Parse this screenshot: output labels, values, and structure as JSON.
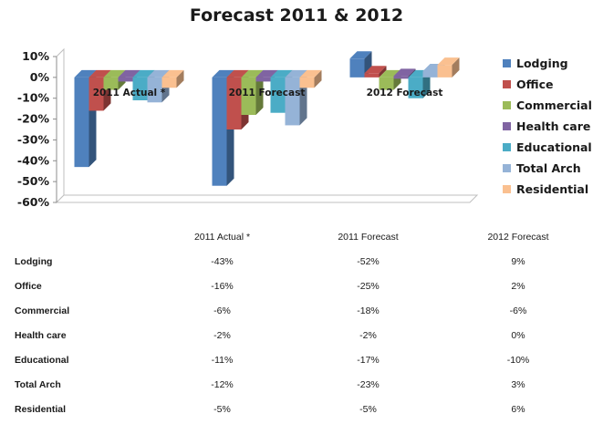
{
  "chart_data": {
    "type": "bar",
    "title": "Forecast 2011 & 2012",
    "categories": [
      "2011 Actual *",
      "2011 Forecast",
      "2012 Forecast"
    ],
    "series": [
      {
        "name": "Lodging",
        "values": [
          -43,
          -52,
          9
        ],
        "color": "#4F81BD"
      },
      {
        "name": "Office",
        "values": [
          -16,
          -25,
          2
        ],
        "color": "#C0504D"
      },
      {
        "name": "Commercial",
        "values": [
          -6,
          -18,
          -6
        ],
        "color": "#9BBB59"
      },
      {
        "name": "Health care",
        "values": [
          -2,
          -2,
          0
        ],
        "color": "#8064A2"
      },
      {
        "name": "Educational",
        "values": [
          -11,
          -17,
          -10
        ],
        "color": "#4BACC6"
      },
      {
        "name": "Total Arch",
        "values": [
          -12,
          -23,
          3
        ],
        "color": "#95B3D7"
      },
      {
        "name": "Residential",
        "values": [
          -5,
          -5,
          6
        ],
        "color": "#FAC090"
      }
    ],
    "ylim": [
      -60,
      10
    ],
    "yticks": [
      "10%",
      "0%",
      "-10%",
      "-20%",
      "-30%",
      "-40%",
      "-50%",
      "-60%"
    ],
    "grid": false,
    "legend": "right",
    "xlabel": "",
    "ylabel": ""
  },
  "table": {
    "headers": [
      "",
      "2011 Actual *",
      "2011 Forecast",
      "2012 Forecast"
    ],
    "rows": [
      {
        "label": "Lodging",
        "cells": [
          "-43%",
          "-52%",
          "9%"
        ]
      },
      {
        "label": "Office",
        "cells": [
          "-16%",
          "-25%",
          "2%"
        ]
      },
      {
        "label": "Commercial",
        "cells": [
          "-6%",
          "-18%",
          "-6%"
        ]
      },
      {
        "label": "Health care",
        "cells": [
          "-2%",
          "-2%",
          "0%"
        ]
      },
      {
        "label": "Educational",
        "cells": [
          "-11%",
          "-17%",
          "-10%"
        ]
      },
      {
        "label": "Total Arch",
        "cells": [
          "-12%",
          "-23%",
          "3%"
        ]
      },
      {
        "label": "Residential",
        "cells": [
          "-5%",
          "-5%",
          "6%"
        ]
      }
    ]
  }
}
